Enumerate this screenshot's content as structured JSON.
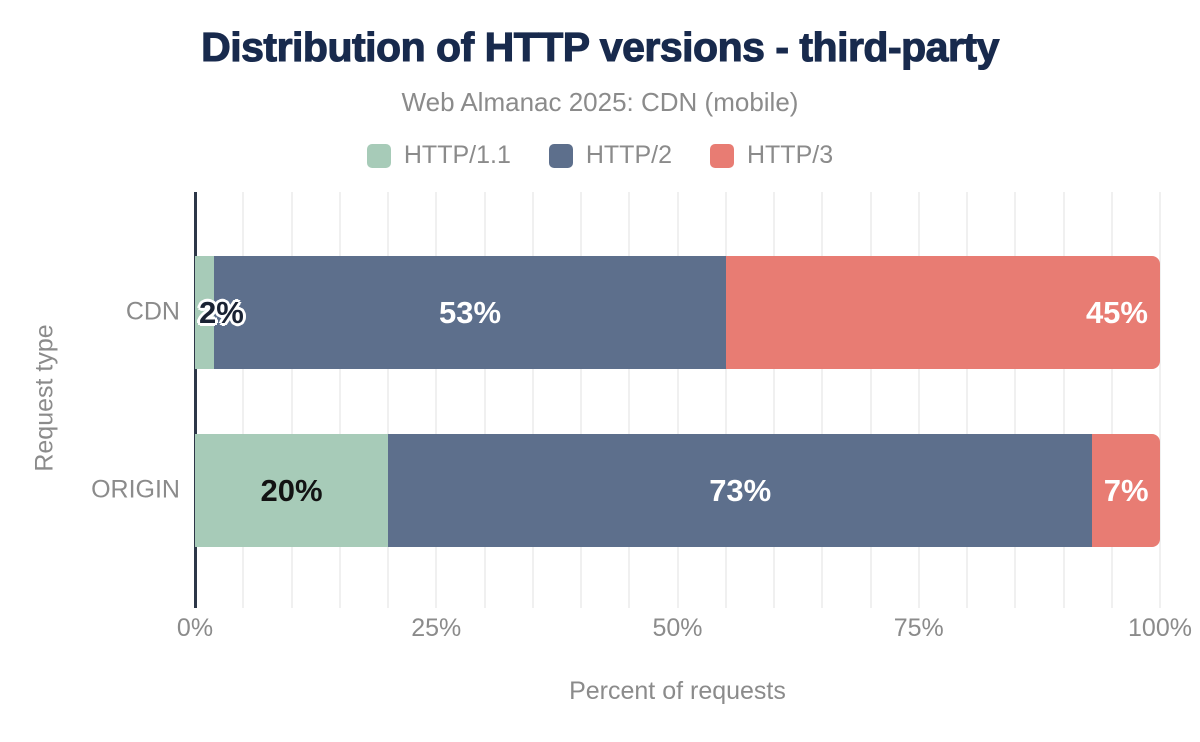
{
  "chart_data": {
    "type": "bar",
    "orientation": "horizontal",
    "stacked": true,
    "title": "Distribution of HTTP versions - third-party",
    "subtitle": "Web Almanac 2025: CDN (mobile)",
    "xlabel": "Percent of requests",
    "ylabel": "Request type",
    "categories": [
      "CDN",
      "ORIGIN"
    ],
    "series": [
      {
        "name": "HTTP/1.1",
        "color": "#a7cbb8",
        "values": [
          2,
          20
        ]
      },
      {
        "name": "HTTP/2",
        "color": "#5d6f8c",
        "values": [
          53,
          73
        ]
      },
      {
        "name": "HTTP/3",
        "color": "#e87c73",
        "values": [
          45,
          7
        ]
      }
    ],
    "data_labels": [
      [
        "2%",
        "53%",
        "45%"
      ],
      [
        "20%",
        "73%",
        "7%"
      ]
    ],
    "label_styles": [
      [
        "outside-start dark-outline",
        "center light",
        "end light"
      ],
      [
        "center dark",
        "center light",
        "center light"
      ]
    ],
    "xlim": [
      0,
      100
    ],
    "xticks": [
      {
        "value": 0,
        "label": "0%"
      },
      {
        "value": 25,
        "label": "25%"
      },
      {
        "value": 50,
        "label": "50%"
      },
      {
        "value": 75,
        "label": "75%"
      },
      {
        "value": 100,
        "label": "100%"
      }
    ],
    "grid": {
      "vertical_step": 5,
      "color": "#f0f0f0",
      "horizontal": false
    },
    "legend_position": "top",
    "colors": {
      "title": "#182a4d",
      "axis_text": "#8b8b8b",
      "axis_line": "#2d3748",
      "background": "#ffffff",
      "label_light": "#ffffff",
      "label_dark": "#131313"
    }
  }
}
